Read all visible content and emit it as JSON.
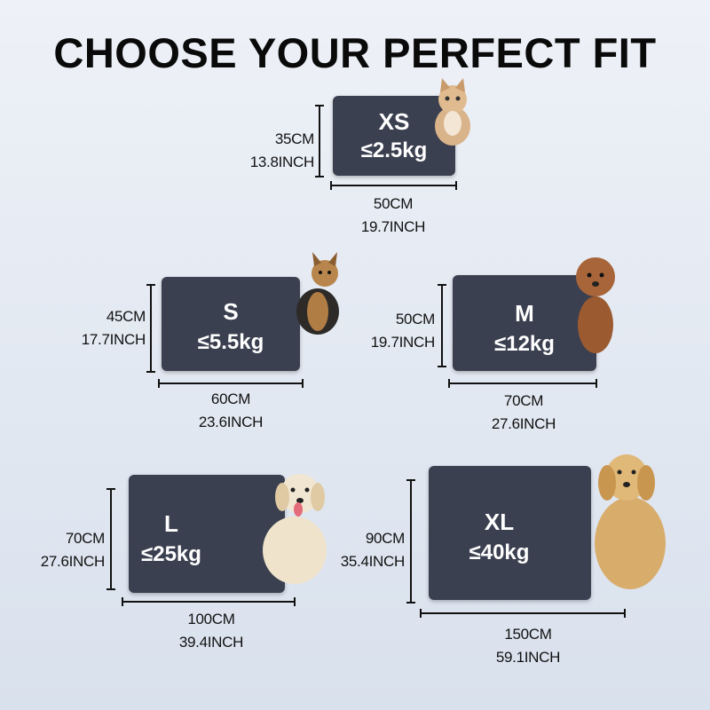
{
  "title": "CHOOSE YOUR PERFECT FIT",
  "colors": {
    "mat": "#3b4050",
    "text": "#111111",
    "background": "#e3e9f2"
  },
  "sizes": [
    {
      "size": "XS",
      "weight": "≤2.5kg",
      "height_cm": "35CM",
      "height_in": "13.8INCH",
      "width_cm": "50CM",
      "width_in": "19.7INCH",
      "pet": "kitten"
    },
    {
      "size": "S",
      "weight": "≤5.5kg",
      "height_cm": "45CM",
      "height_in": "17.7INCH",
      "width_cm": "60CM",
      "width_in": "23.6INCH",
      "pet": "yorkshire-terrier"
    },
    {
      "size": "M",
      "weight": "≤12kg",
      "height_cm": "50CM",
      "height_in": "19.7INCH",
      "width_cm": "70CM",
      "width_in": "27.6INCH",
      "pet": "poodle"
    },
    {
      "size": "L",
      "weight": "≤25kg",
      "height_cm": "70CM",
      "height_in": "27.6INCH",
      "width_cm": "100CM",
      "width_in": "39.4INCH",
      "pet": "labrador"
    },
    {
      "size": "XL",
      "weight": "≤40kg",
      "height_cm": "90CM",
      "height_in": "35.4INCH",
      "width_cm": "150CM",
      "width_in": "59.1INCH",
      "pet": "golden-retriever"
    }
  ]
}
